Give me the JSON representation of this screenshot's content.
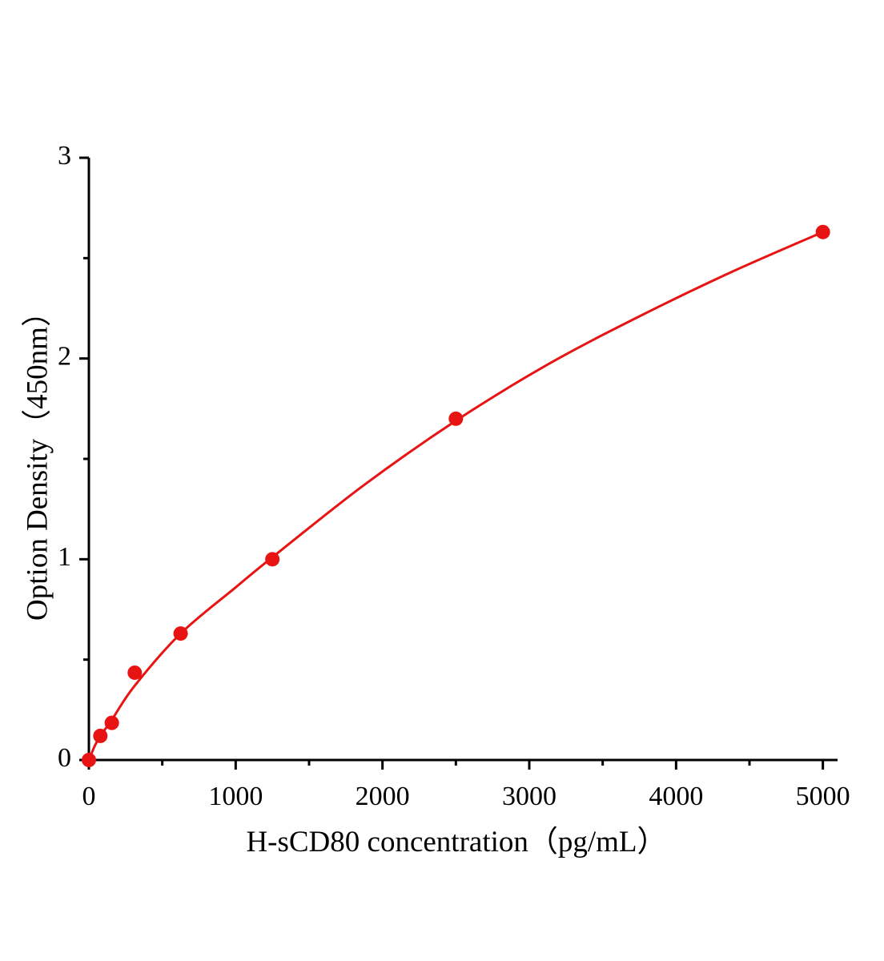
{
  "chart_data": {
    "type": "scatter",
    "x_label": "H-sCD80 concentration（pg/mL）",
    "y_label": "Option Density（450nm）",
    "xlim": [
      0,
      5100
    ],
    "ylim": [
      0,
      3
    ],
    "xticks": [
      0,
      1000,
      2000,
      3000,
      4000,
      5000
    ],
    "xminorticks": [
      500,
      1500,
      2500,
      3500,
      4500
    ],
    "yticks": [
      0,
      1,
      2,
      3
    ],
    "yminorticks": [
      0.5,
      1.5,
      2.5
    ],
    "color": "#e81414",
    "series": [
      {
        "x": [
          0,
          78.125,
          156.25,
          312.5,
          625,
          1250,
          2500,
          5000
        ],
        "values": [
          0,
          0.12,
          0.185,
          0.435,
          0.63,
          1.0,
          1.7,
          2.63
        ]
      }
    ],
    "fit": {
      "x": [
        0,
        40,
        78,
        156,
        312,
        625,
        1000,
        1250,
        1875,
        2500,
        3125,
        3750,
        4375,
        5000
      ],
      "values": [
        0,
        0.07,
        0.12,
        0.2,
        0.37,
        0.63,
        0.86,
        1.01,
        1.37,
        1.69,
        1.97,
        2.21,
        2.43,
        2.63
      ]
    }
  }
}
